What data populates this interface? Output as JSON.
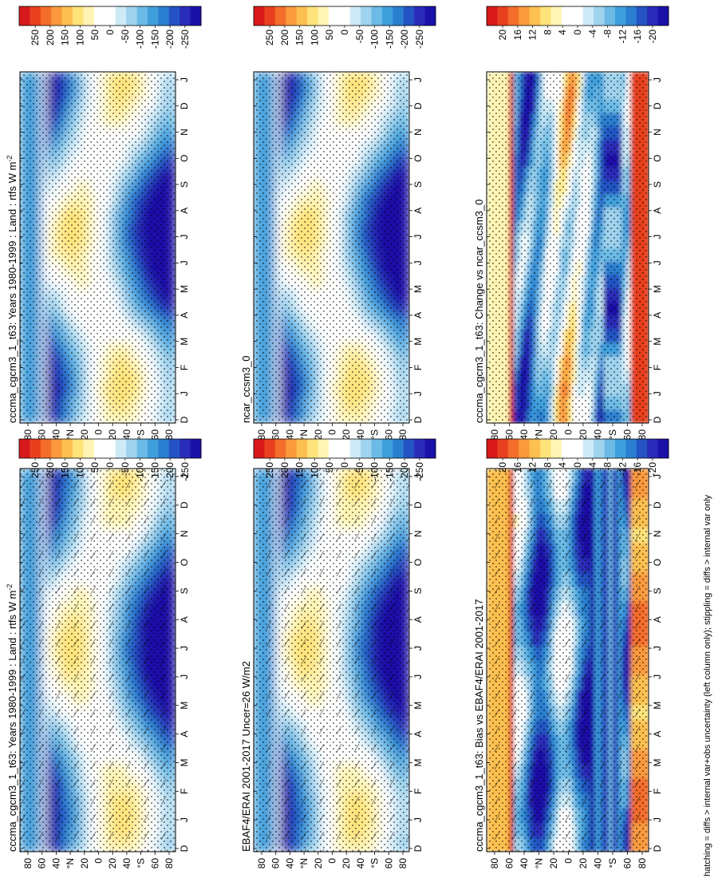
{
  "figure": {
    "footnote": "hatching = diffs > internal var+obs uncertainty (left column only); stippling = diffs > internal var only"
  },
  "colorbars": {
    "absolute": {
      "labels": [
        "250",
        "200",
        "150",
        "100",
        "50",
        "0",
        "-50",
        "-100",
        "-150",
        "-200",
        "-250"
      ],
      "colors": [
        "#d7191c",
        "#e8401f",
        "#f46d2b",
        "#fa9a3c",
        "#fdc050",
        "#fee37a",
        "#fff4b3",
        "#ffffff",
        "#ffffff",
        "#cdeaf7",
        "#9fd3ee",
        "#6cbbe6",
        "#3f9fdc",
        "#2a7fd0",
        "#2454c4",
        "#2a2bb8",
        "#1a11a8"
      ]
    },
    "difference": {
      "labels": [
        "20",
        "16",
        "12",
        "8",
        "4",
        "0",
        "-4",
        "-8",
        "-12",
        "-16",
        "-20"
      ],
      "colors": [
        "#d7191c",
        "#e8401f",
        "#f46d2b",
        "#fa9a3c",
        "#fdc050",
        "#fee37a",
        "#fff4b3",
        "#ffffff",
        "#ffffff",
        "#cdeaf7",
        "#9fd3ee",
        "#6cbbe6",
        "#3f9fdc",
        "#2a7fd0",
        "#2454c4",
        "#2a2bb8",
        "#1a11a8"
      ]
    }
  },
  "axes": {
    "months": [
      "D",
      "J",
      "F",
      "M",
      "A",
      "M",
      "J",
      "J",
      "A",
      "S",
      "O",
      "N",
      "D",
      "J"
    ],
    "lat_ticks": [
      "80",
      "60",
      "40",
      "°N",
      "20",
      "0",
      "20",
      "40",
      "°S",
      "60",
      "80"
    ]
  },
  "chart_data": [
    {
      "type": "heatmap",
      "title": "cccma_cgcm3_1_t63: Years 1980-1999 : Land : rtfs W m",
      "title_sup": "-2",
      "colorbar": "absolute",
      "hatching": true,
      "x": [
        "D",
        "J",
        "F",
        "M",
        "A",
        "M",
        "J",
        "J",
        "A",
        "S",
        "O",
        "N",
        "D",
        "J"
      ],
      "y": [
        "80N",
        "60N",
        "40N",
        "20N",
        "0",
        "20S",
        "40S",
        "60S",
        "80S"
      ]
    },
    {
      "type": "heatmap",
      "title": "cccma_cgcm3_1_t63: Years 1980-1999 : Land : rtfs W m",
      "title_sup": "-2",
      "colorbar": "absolute",
      "hatching": false,
      "x": [
        "D",
        "J",
        "F",
        "M",
        "A",
        "M",
        "J",
        "J",
        "A",
        "S",
        "O",
        "N",
        "D",
        "J"
      ],
      "y": [
        "80N",
        "60N",
        "40N",
        "20N",
        "0",
        "20S",
        "40S",
        "60S",
        "80S"
      ]
    },
    {
      "type": "heatmap",
      "title": "EBAF4/ERAI 2001-2017 Uncer=26 W/m2",
      "title_sup": "",
      "colorbar": "absolute",
      "hatching": true,
      "x": [
        "D",
        "J",
        "F",
        "M",
        "A",
        "M",
        "J",
        "J",
        "A",
        "S",
        "O",
        "N",
        "D",
        "J"
      ],
      "y": [
        "80N",
        "60N",
        "40N",
        "20N",
        "0",
        "20S",
        "40S",
        "60S",
        "80S"
      ]
    },
    {
      "type": "heatmap",
      "title": "ncar_ccsm3_0",
      "title_sup": "",
      "colorbar": "absolute",
      "hatching": false,
      "x": [
        "D",
        "J",
        "F",
        "M",
        "A",
        "M",
        "J",
        "J",
        "A",
        "S",
        "O",
        "N",
        "D",
        "J"
      ],
      "y": [
        "80N",
        "60N",
        "40N",
        "20N",
        "0",
        "20S",
        "40S",
        "60S",
        "80S"
      ]
    },
    {
      "type": "heatmap",
      "title": "cccma_cgcm3_1_t63: Bias vs EBAF4/ERAI 2001-2017",
      "title_sup": "",
      "colorbar": "difference",
      "hatching": true,
      "x": [
        "D",
        "J",
        "F",
        "M",
        "A",
        "M",
        "J",
        "J",
        "A",
        "S",
        "O",
        "N",
        "D",
        "J"
      ],
      "y": [
        "80N",
        "60N",
        "40N",
        "20N",
        "0",
        "20S",
        "40S",
        "60S",
        "80S"
      ]
    },
    {
      "type": "heatmap",
      "title": "cccma_cgcm3_1_t63: Change vs ncar_ccsm3_0",
      "title_sup": "",
      "colorbar": "difference",
      "hatching": false,
      "x": [
        "D",
        "J",
        "F",
        "M",
        "A",
        "M",
        "J",
        "J",
        "A",
        "S",
        "O",
        "N",
        "D",
        "J"
      ],
      "y": [
        "80N",
        "60N",
        "40N",
        "20N",
        "0",
        "20S",
        "40S",
        "60S",
        "80S"
      ]
    }
  ]
}
